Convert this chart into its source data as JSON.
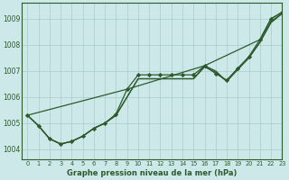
{
  "title": "Graphe pression niveau de la mer (hPa)",
  "bg_color": "#cce8e8",
  "grid_color": "#aacccc",
  "line_color": "#2d5a2d",
  "xlim": [
    -0.5,
    23
  ],
  "ylim": [
    1003.6,
    1009.6
  ],
  "yticks": [
    1004,
    1005,
    1006,
    1007,
    1008,
    1009
  ],
  "xticks": [
    0,
    1,
    2,
    3,
    4,
    5,
    6,
    7,
    8,
    9,
    10,
    11,
    12,
    13,
    14,
    15,
    16,
    17,
    18,
    19,
    20,
    21,
    22,
    23
  ],
  "line1": [
    1005.3,
    1004.9,
    1004.4,
    1004.2,
    1004.3,
    1004.5,
    1004.8,
    1005.0,
    1005.35,
    1006.3,
    1006.85,
    1006.85,
    1006.85,
    1006.85,
    1006.85,
    1006.85,
    1007.2,
    1006.9,
    1006.65,
    1007.1,
    1007.55,
    1008.2,
    1009.0,
    1009.25
  ],
  "line2": [
    1005.3,
    1004.9,
    1004.4,
    1004.2,
    1004.3,
    1004.5,
    1004.8,
    1005.0,
    1005.3,
    1006.0,
    1006.7,
    1006.7,
    1006.7,
    1006.7,
    1006.7,
    1006.7,
    1007.15,
    1006.95,
    1006.6,
    1007.05,
    1007.5,
    1008.1,
    1008.85,
    1009.2
  ],
  "line3": [
    1005.3,
    1004.9,
    1004.4,
    1004.2,
    1004.3,
    1004.5,
    1004.8,
    1005.0,
    1005.3,
    1006.0,
    1006.7,
    1006.7,
    1006.7,
    1006.7,
    1006.7,
    1006.7,
    1007.2,
    1007.0,
    1006.6,
    1007.1,
    1007.5,
    1008.1,
    1008.9,
    1009.2
  ],
  "line4_x": [
    0,
    9,
    16,
    21,
    22,
    23
  ],
  "line4_y": [
    1005.3,
    1006.3,
    1007.2,
    1008.2,
    1009.0,
    1009.25
  ]
}
